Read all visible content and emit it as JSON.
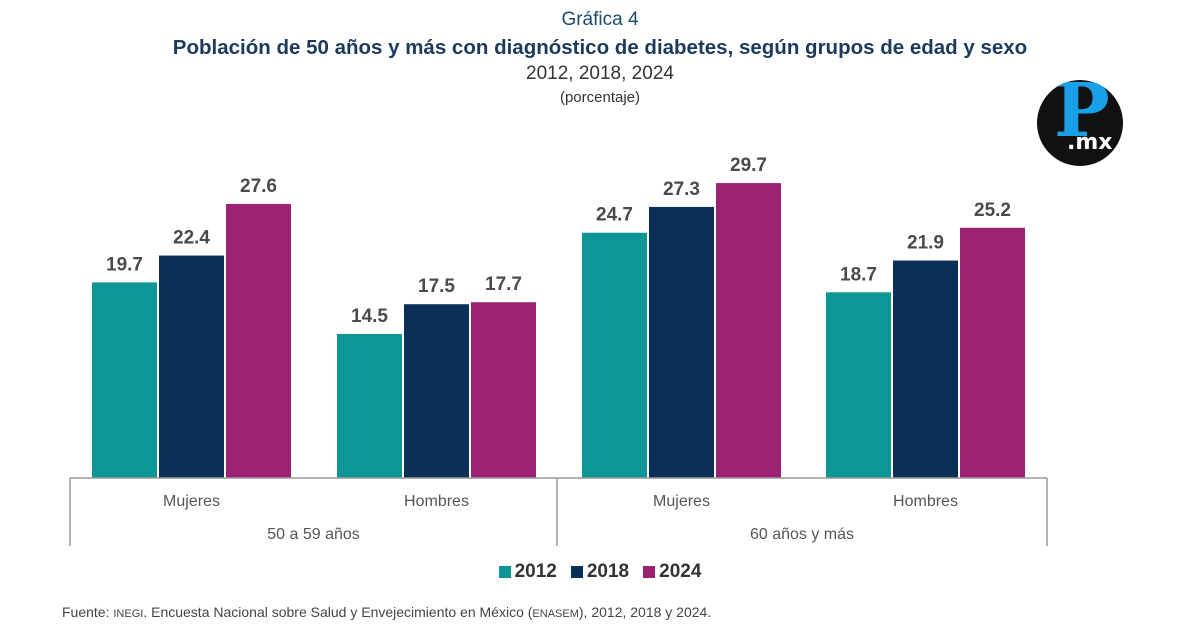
{
  "header": {
    "supertitle": "Gráfica 4",
    "title": "Población de 50 años y más con diagnóstico de diabetes, según grupos de edad y sexo",
    "years": "2012, 2018, 2024",
    "unit": "(porcentaje)"
  },
  "logo": {
    "letter": "P",
    "suffix": ".mx"
  },
  "legend": [
    {
      "label": "2012",
      "color": "#0e9696"
    },
    {
      "label": "2018",
      "color": "#0b2f57"
    },
    {
      "label": "2024",
      "color": "#9c2373"
    }
  ],
  "source": {
    "prefix": "Fuente: ",
    "org": "INEGI",
    "text1": ". Encuesta Nacional sobre Salud y Envejecimiento en México (",
    "acronym": "ENASEM",
    "text2": "), 2012, 2018 y 2024."
  },
  "chart_data": {
    "type": "bar",
    "title": "Población de 50 años y más con diagnóstico de diabetes, según grupos de edad y sexo",
    "subtitle": "2012, 2018, 2024 (porcentaje)",
    "xlabel": "",
    "ylabel": "porcentaje",
    "ylim": [
      0,
      30
    ],
    "grid": false,
    "legend_position": "bottom",
    "groups": [
      {
        "label": "50 a 59 años",
        "categories": [
          "Mujeres",
          "Hombres"
        ]
      },
      {
        "label": "60 años y más",
        "categories": [
          "Mujeres",
          "Hombres"
        ]
      }
    ],
    "categories": [
      "Mujeres",
      "Hombres",
      "Mujeres",
      "Hombres"
    ],
    "series": [
      {
        "name": "2012",
        "color": "#0e9696",
        "values": [
          19.7,
          14.5,
          24.7,
          18.7
        ]
      },
      {
        "name": "2018",
        "color": "#0b2f57",
        "values": [
          22.4,
          17.5,
          27.3,
          21.9
        ]
      },
      {
        "name": "2024",
        "color": "#9c2373",
        "values": [
          27.6,
          17.7,
          29.7,
          25.2
        ]
      }
    ]
  }
}
